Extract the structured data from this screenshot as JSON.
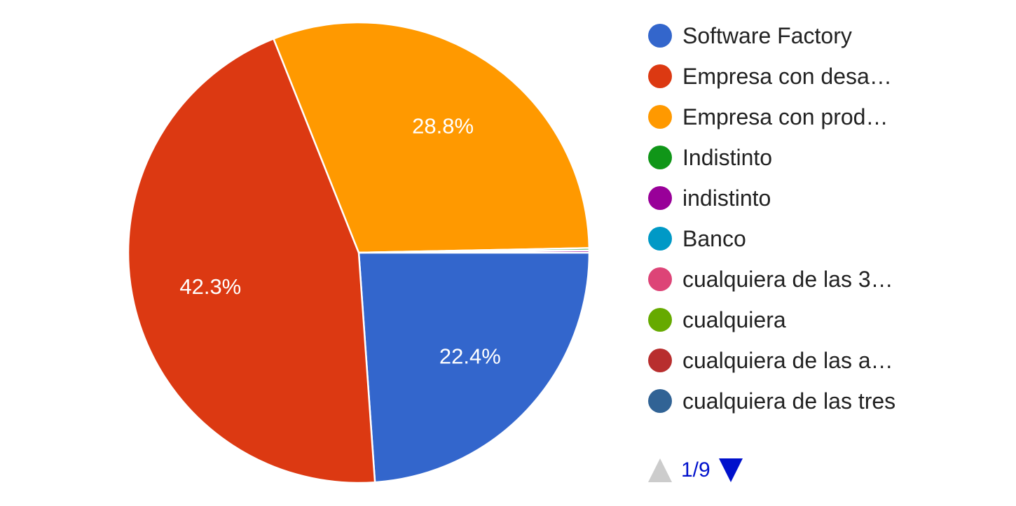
{
  "chart_data": {
    "type": "pie",
    "title": "",
    "slices": [
      {
        "label": "Software Factory",
        "value": 22.4,
        "display": "22.4%",
        "color": "#3366cc"
      },
      {
        "label": "Empresa con desa…",
        "value": 42.3,
        "display": "42.3%",
        "color": "#dc3912"
      },
      {
        "label": "Empresa con prod…",
        "value": 28.8,
        "display": "28.8%",
        "color": "#ff9900"
      },
      {
        "label": "Indistinto",
        "value": 0.15,
        "display": "",
        "color": "#109618"
      },
      {
        "label": "indistinto",
        "value": 0.15,
        "display": "",
        "color": "#990099"
      },
      {
        "label": "Banco",
        "value": 0,
        "display": "",
        "color": "#0099c6"
      },
      {
        "label": "cualquiera de las 3…",
        "value": 0,
        "display": "",
        "color": "#dd4477"
      },
      {
        "label": "cualquiera",
        "value": 0,
        "display": "",
        "color": "#66aa00"
      },
      {
        "label": "cualquiera de las a…",
        "value": 0,
        "display": "",
        "color": "#b82e2e"
      },
      {
        "label": "cualquiera de las tres",
        "value": 0,
        "display": "",
        "color": "#316395"
      }
    ],
    "legend": {
      "position": "right"
    }
  },
  "pager": {
    "text": "1/9",
    "up_icon": "triangle-up",
    "down_icon": "triangle-down"
  }
}
